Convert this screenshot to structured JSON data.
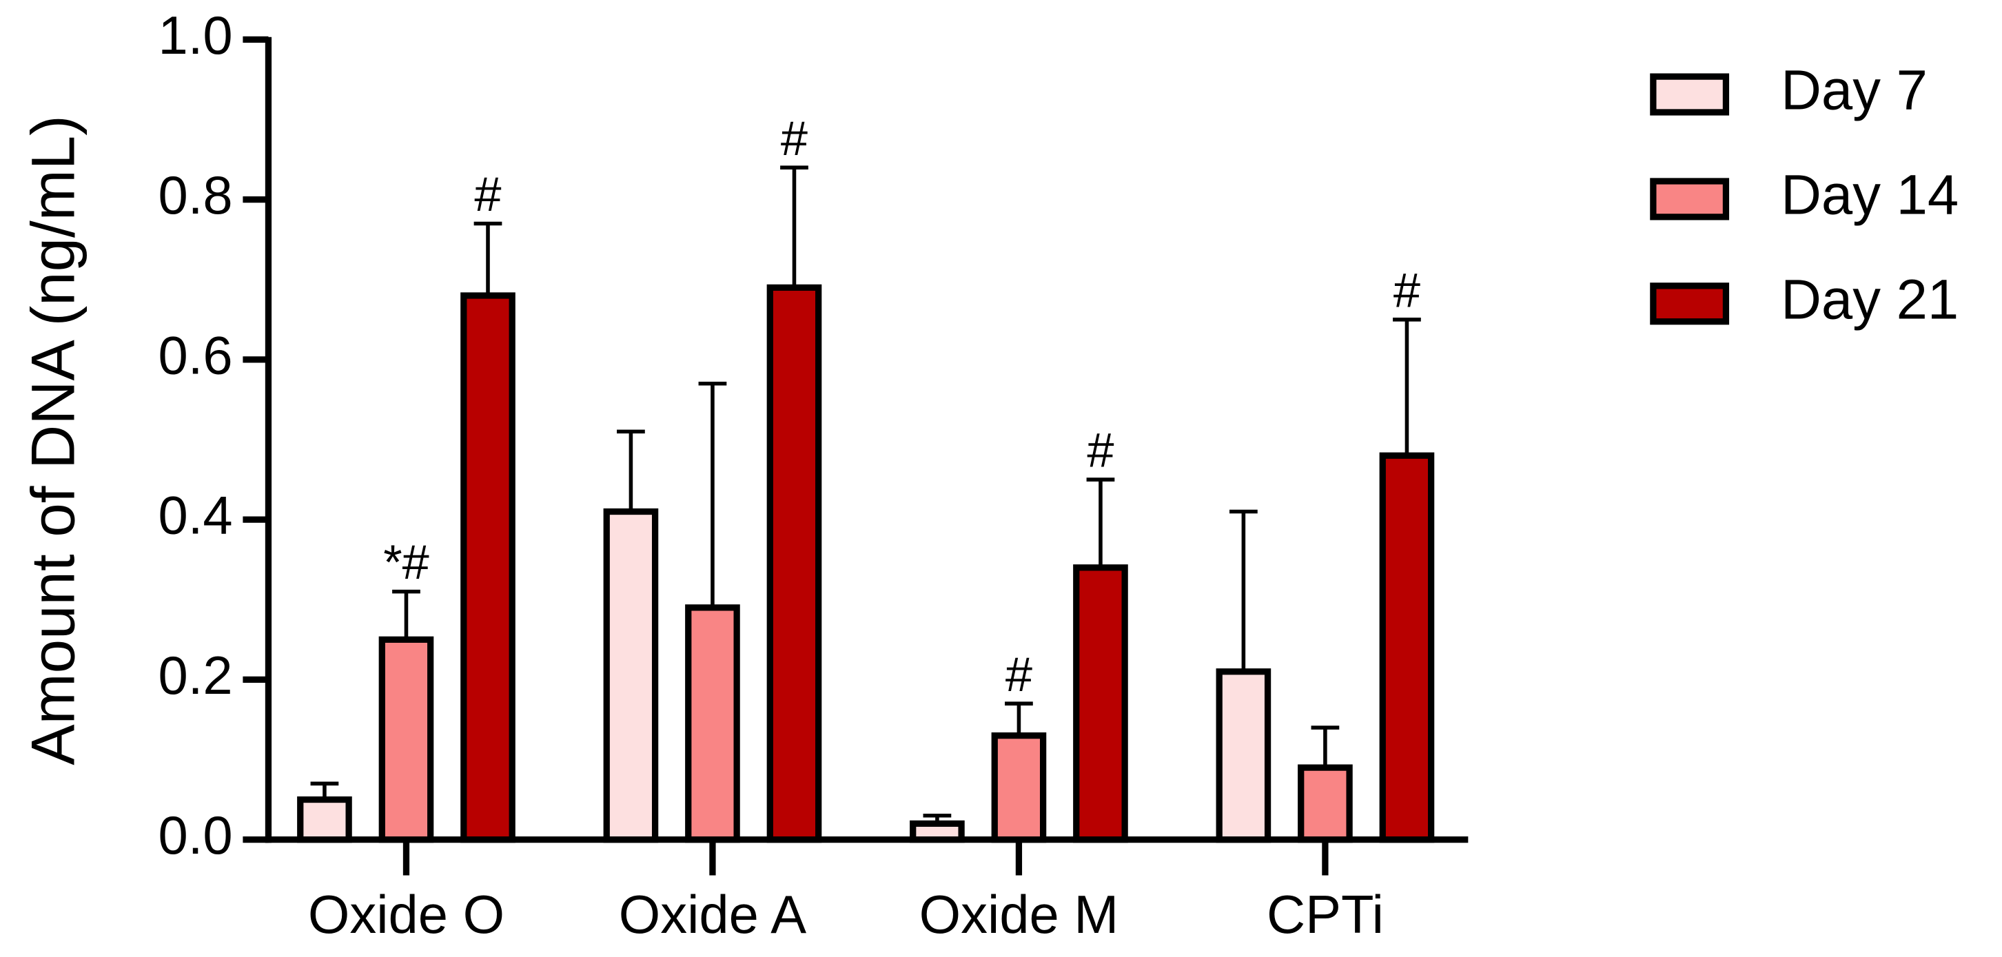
{
  "chart_data": {
    "type": "bar",
    "y_label": "Amount of DNA (ng/mL)",
    "categories": [
      "Oxide O",
      "Oxide A",
      "Oxide M",
      "CPTi"
    ],
    "series": [
      {
        "name": "Day 7",
        "color": "#fde0e0",
        "values": [
          0.05,
          0.41,
          0.02,
          0.21
        ],
        "errors": [
          0.02,
          0.1,
          0.01,
          0.2
        ],
        "annotations": [
          null,
          null,
          null,
          null
        ]
      },
      {
        "name": "Day 14",
        "color": "#f98585",
        "values": [
          0.25,
          0.29,
          0.13,
          0.09
        ],
        "errors": [
          0.06,
          0.28,
          0.04,
          0.05
        ],
        "annotations": [
          "*#",
          null,
          "#",
          null
        ]
      },
      {
        "name": "Day 21",
        "color": "#b80000",
        "values": [
          0.68,
          0.69,
          0.34,
          0.48
        ],
        "errors": [
          0.09,
          0.15,
          0.11,
          0.17
        ],
        "annotations": [
          "#",
          "#",
          "#",
          "#"
        ]
      }
    ],
    "ylim": [
      0,
      1.0
    ],
    "yticks": [
      {
        "value": 0,
        "label": "0.0"
      },
      {
        "value": 0.2,
        "label": "0.2"
      },
      {
        "value": 0.4,
        "label": "0.4"
      },
      {
        "value": 0.6,
        "label": "0.6"
      },
      {
        "value": 0.8,
        "label": "0.8"
      },
      {
        "value": 1.0,
        "label": "1.0"
      }
    ],
    "legend": "right"
  }
}
